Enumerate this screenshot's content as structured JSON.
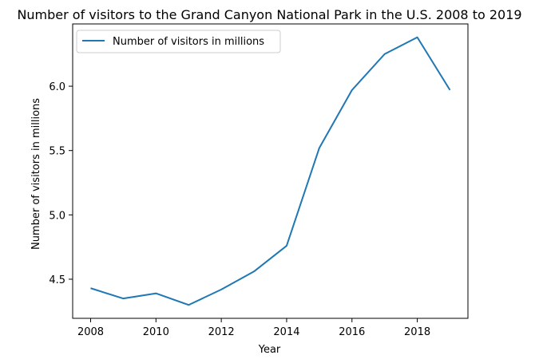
{
  "chart_data": {
    "type": "line",
    "title": "Number of visitors to the Grand Canyon National Park in the U.S. 2008 to 2019",
    "xlabel": "Year",
    "ylabel": "Number of visitors in millions",
    "x": [
      2008,
      2009,
      2010,
      2011,
      2012,
      2013,
      2014,
      2015,
      2016,
      2017,
      2018,
      2019
    ],
    "series": [
      {
        "name": "Number of visitors in millions",
        "values": [
          4.43,
          4.35,
          4.39,
          4.3,
          4.42,
          4.56,
          4.76,
          5.52,
          5.97,
          6.25,
          6.38,
          5.97
        ],
        "color": "#1f77b4"
      }
    ],
    "xlim": [
      2007.45,
      2019.55
    ],
    "ylim": [
      4.196,
      6.484
    ],
    "xticks": [
      2008,
      2010,
      2012,
      2014,
      2016,
      2018
    ],
    "xtick_labels": [
      "2008",
      "2010",
      "2012",
      "2014",
      "2016",
      "2018"
    ],
    "yticks": [
      4.5,
      5.0,
      5.5,
      6.0
    ],
    "ytick_labels": [
      "4.5",
      "5.0",
      "5.5",
      "6.0"
    ],
    "legend_position": "top-left",
    "grid": false
  }
}
